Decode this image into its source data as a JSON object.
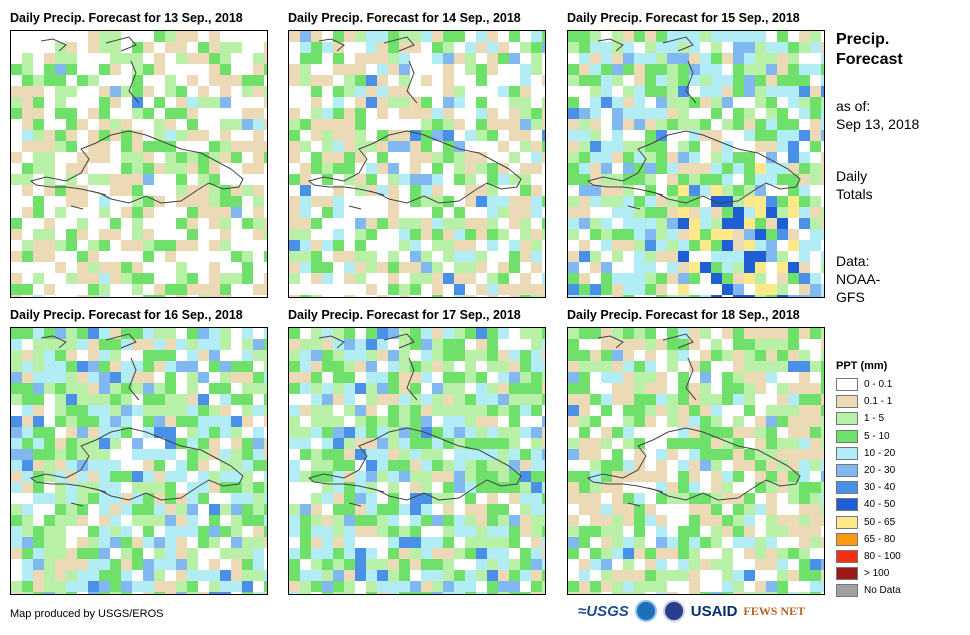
{
  "panels": [
    {
      "title": "Daily Precip. Forecast for 13 Sep., 2018"
    },
    {
      "title": "Daily Precip. Forecast for 14 Sep., 2018"
    },
    {
      "title": "Daily Precip. Forecast for 15 Sep., 2018"
    },
    {
      "title": "Daily Precip. Forecast for 16 Sep., 2018"
    },
    {
      "title": "Daily Precip. Forecast for 17 Sep., 2018"
    },
    {
      "title": "Daily Precip. Forecast for 18 Sep., 2018"
    }
  ],
  "side": {
    "title_line1": "Precip.",
    "title_line2": "Forecast",
    "asof_label": "as of:",
    "asof_date": "Sep 13, 2018",
    "totals_line1": "Daily",
    "totals_line2": "Totals",
    "data_line1": "Data:",
    "data_line2": "NOAA-",
    "data_line3": "GFS"
  },
  "legend": {
    "title": "PPT (mm)",
    "items": [
      {
        "label": "0 - 0.1",
        "color": "#ffffff"
      },
      {
        "label": "0.1 - 1",
        "color": "#ecd9b6"
      },
      {
        "label": "1 - 5",
        "color": "#b8f0a8"
      },
      {
        "label": "5 - 10",
        "color": "#6fe06a"
      },
      {
        "label": "10 - 20",
        "color": "#b2ecf5"
      },
      {
        "label": "20 - 30",
        "color": "#82b8f0"
      },
      {
        "label": "30 - 40",
        "color": "#4a90e6"
      },
      {
        "label": "40 - 50",
        "color": "#1e5fd6"
      },
      {
        "label": "50 - 65",
        "color": "#fde98a"
      },
      {
        "label": "65 - 80",
        "color": "#fb9a10"
      },
      {
        "label": "80 - 100",
        "color": "#f03010"
      },
      {
        "label": "> 100",
        "color": "#a01818"
      },
      {
        "label": "No Data",
        "color": "#a0a0a0"
      }
    ]
  },
  "footer": {
    "credit": "Map produced by USGS/EROS",
    "logo_usgs": "≈USGS",
    "logo_usaid": "USAID",
    "logo_fews": "FEWS NET"
  }
}
